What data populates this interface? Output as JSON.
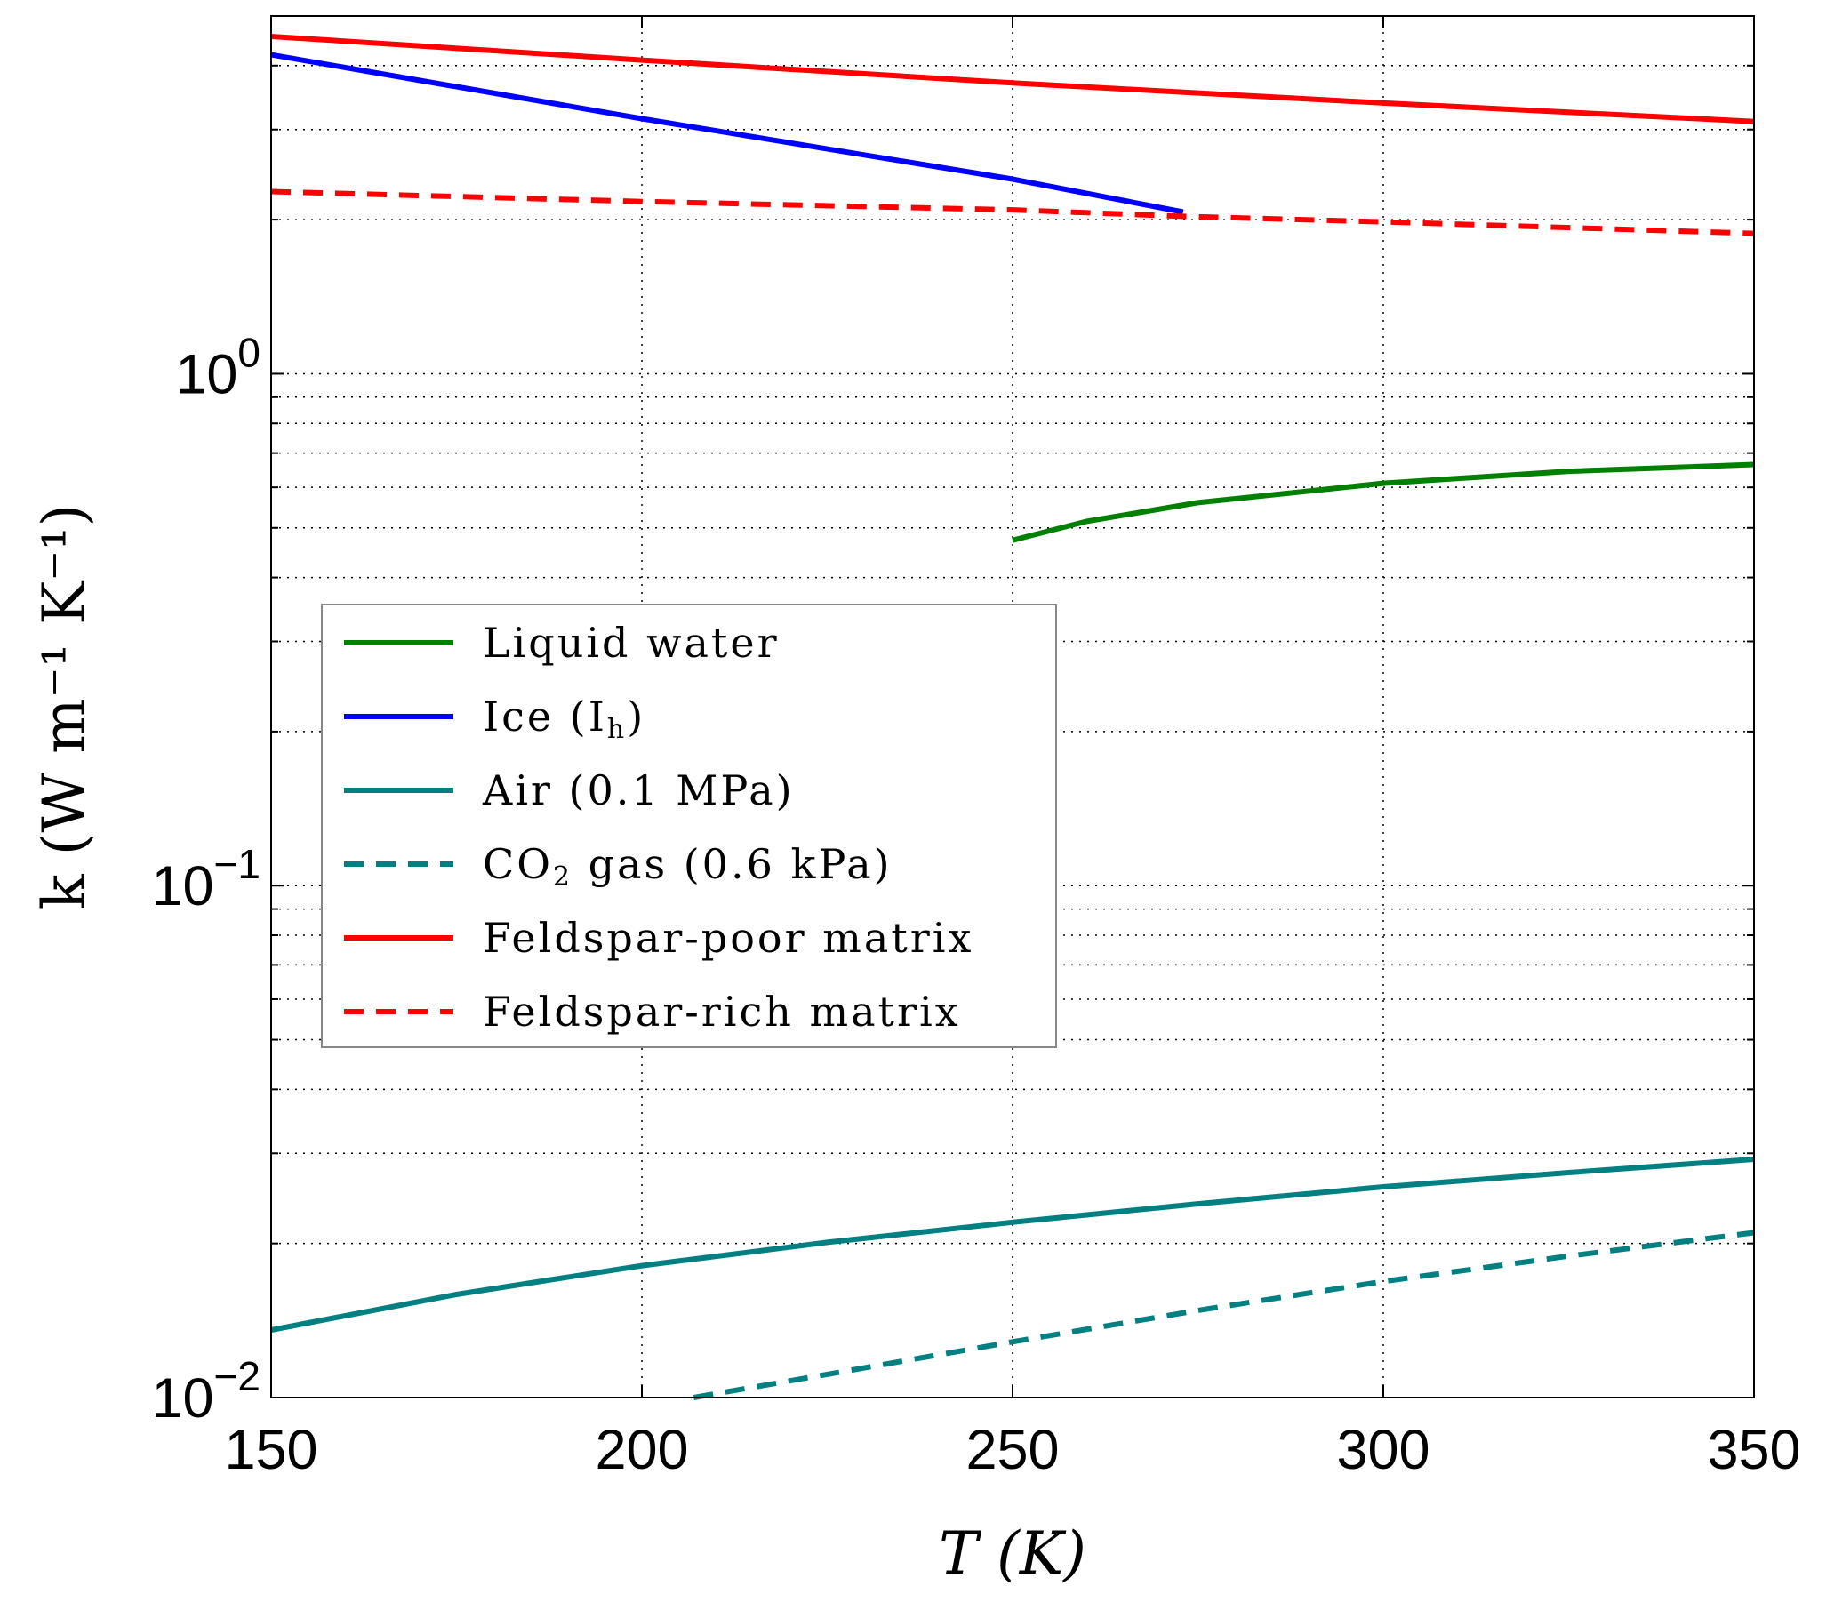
{
  "chart_data": {
    "type": "line",
    "xlabel": "T (K)",
    "ylabel": "k (W m⁻¹ K⁻¹)",
    "xlim": [
      150,
      350
    ],
    "ylim": [
      0.01,
      5
    ],
    "yscale": "log",
    "grid": true,
    "legend_position": "center-left",
    "xticks": [
      "150",
      "200",
      "250",
      "300",
      "350"
    ],
    "yticks": [
      {
        "base": "10",
        "exp": "−2"
      },
      {
        "base": "10",
        "exp": "−1"
      },
      {
        "base": "10",
        "exp": "0"
      }
    ],
    "series": [
      {
        "name": "Liquid water",
        "color": "#008000",
        "dash": false,
        "x": [
          250,
          260,
          275,
          300,
          325,
          350
        ],
        "y": [
          0.473,
          0.515,
          0.56,
          0.611,
          0.645,
          0.665
        ]
      },
      {
        "name": "Ice (I",
        "name_sub": "h",
        "name_end": ")",
        "color": "#0000ff",
        "dash": false,
        "x": [
          150,
          200,
          250,
          273
        ],
        "y": [
          4.2,
          3.15,
          2.4,
          2.07
        ]
      },
      {
        "name": "Air (0.1 MPa)",
        "color": "#008080",
        "dash": false,
        "x": [
          150,
          175,
          200,
          225,
          250,
          275,
          300,
          325,
          350
        ],
        "y": [
          0.01355,
          0.0159,
          0.0181,
          0.0201,
          0.022,
          0.0239,
          0.0258,
          0.0275,
          0.0292
        ]
      },
      {
        "name": "CO",
        "name_sub": "2",
        "name_end": " gas (0.6 kPa)",
        "color": "#008080",
        "dash": true,
        "x": [
          207,
          225,
          250,
          275,
          300,
          325,
          350
        ],
        "y": [
          0.01,
          0.0111,
          0.01285,
          0.0148,
          0.01686,
          0.0189,
          0.021
        ]
      },
      {
        "name": "Feldspar-poor matrix",
        "color": "#ff0000",
        "dash": false,
        "x": [
          150,
          200,
          250,
          300,
          350
        ],
        "y": [
          4.56,
          4.1,
          3.7,
          3.38,
          3.11
        ]
      },
      {
        "name": "Feldspar-rich matrix",
        "color": "#ff0000",
        "dash": true,
        "x": [
          150,
          200,
          250,
          273,
          300,
          350
        ],
        "y": [
          2.27,
          2.17,
          2.09,
          2.03,
          1.98,
          1.88
        ]
      }
    ]
  }
}
